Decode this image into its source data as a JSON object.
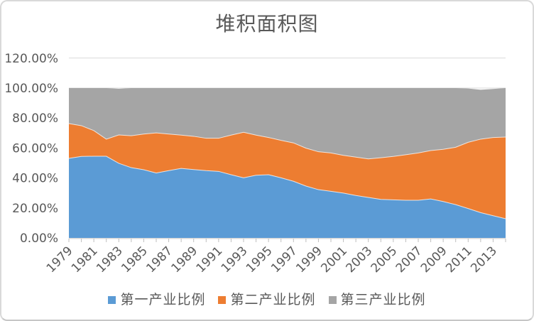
{
  "window": {
    "background": "#FFFFFF",
    "border_color": "#D9D9D9"
  },
  "chart_data": {
    "type": "area",
    "stacked": true,
    "units": "percent",
    "title": "堆积面积图",
    "xlabel": "",
    "ylabel": "",
    "ylim": [
      0,
      120
    ],
    "grid": "horizontal",
    "gridline_color": "#D9D9D9",
    "axis_text_color": "#595959",
    "legend_position": "bottom",
    "x": [
      1979,
      1980,
      1981,
      1982,
      1983,
      1984,
      1985,
      1986,
      1987,
      1988,
      1989,
      1990,
      1991,
      1992,
      1993,
      1994,
      1995,
      1996,
      1997,
      1998,
      1999,
      2000,
      2001,
      2002,
      2003,
      2004,
      2005,
      2006,
      2007,
      2008,
      2009,
      2010,
      2011,
      2012,
      2013,
      2014
    ],
    "x_tick_labels": [
      "1979",
      "1981",
      "1983",
      "1985",
      "1987",
      "1989",
      "1991",
      "1993",
      "1995",
      "1997",
      "1999",
      "2001",
      "2003",
      "2005",
      "2007",
      "2009",
      "2011",
      "2013"
    ],
    "y_tick_labels": [
      "0.00%",
      "20.00%",
      "40.00%",
      "60.00%",
      "80.00%",
      "100.00%",
      "120.00%"
    ],
    "series": [
      {
        "name": "第一产业比例",
        "color": "#5B9BD5",
        "values": [
          53.1,
          54.4,
          54.5,
          54.5,
          49.8,
          46.9,
          45.5,
          43.3,
          44.9,
          46.4,
          45.6,
          44.9,
          44.4,
          42.2,
          40.1,
          41.8,
          42.2,
          40.1,
          37.8,
          34.6,
          32.2,
          31.1,
          29.9,
          28.3,
          27.0,
          25.7,
          25.4,
          25.1,
          25.1,
          26.0,
          24.3,
          22.2,
          19.6,
          16.9,
          14.8,
          12.8
        ]
      },
      {
        "name": "第二产业比例",
        "color": "#ED7D31",
        "values": [
          23.2,
          20.5,
          17.1,
          11.4,
          18.9,
          21.3,
          23.8,
          26.8,
          24.4,
          22.2,
          22.2,
          21.6,
          22.1,
          26.4,
          30.4,
          26.8,
          24.8,
          25.0,
          25.6,
          25.3,
          25.3,
          25.6,
          25.2,
          25.6,
          25.7,
          27.8,
          29.0,
          30.4,
          31.6,
          32.3,
          34.8,
          38.3,
          44.2,
          49.0,
          52.2,
          54.5
        ]
      },
      {
        "name": "第三产业比例",
        "color": "#A5A5A5",
        "values": [
          23.7,
          25.1,
          28.4,
          34.1,
          30.8,
          31.8,
          30.7,
          29.9,
          30.7,
          31.4,
          32.2,
          33.5,
          33.5,
          31.4,
          29.5,
          31.4,
          33.0,
          34.9,
          36.6,
          40.1,
          42.5,
          43.3,
          44.9,
          46.1,
          47.3,
          46.5,
          45.6,
          44.5,
          43.3,
          41.7,
          40.9,
          39.5,
          35.9,
          33.0,
          32.4,
          32.7
        ]
      }
    ]
  }
}
